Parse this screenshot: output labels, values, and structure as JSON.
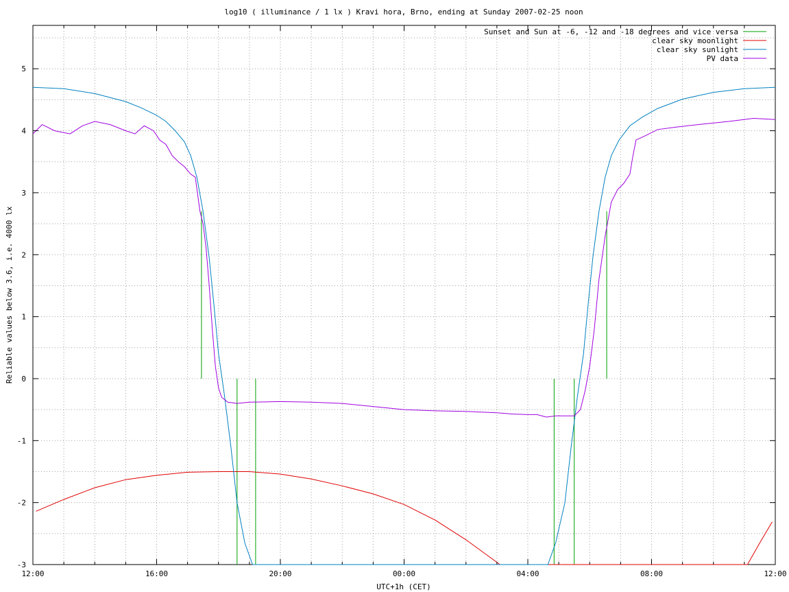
{
  "chart_data": {
    "type": "line",
    "title": "log10 ( illuminance / 1 lx ) Kravi hora, Brno, ending at Sunday 2007-02-25 noon",
    "xlabel": "UTC+1h (CET)",
    "ylabel": "Reliable values below 3.6, i.e. 4000 lx",
    "xlim": [
      0,
      24
    ],
    "ylim": [
      -3,
      5.7
    ],
    "x_tick_values": [
      0,
      4,
      8,
      12,
      16,
      20,
      24
    ],
    "x_tick_labels": [
      "12:00",
      "16:00",
      "20:00",
      "00:00",
      "04:00",
      "08:00",
      "12:00"
    ],
    "y_tick_values": [
      -3,
      -2,
      -1,
      0,
      1,
      2,
      3,
      4,
      5
    ],
    "y_tick_labels": [
      "-3",
      "-2",
      "-1",
      "0",
      "1",
      "2",
      "3",
      "4",
      "5"
    ],
    "grid": true,
    "legend_position": "top-right",
    "series": [
      {
        "name": "Sunset and Sun at -6, -12 and -18 degrees and vice versa",
        "color": "#00a000",
        "style": "impulses",
        "impulses": [
          [
            5.45,
            0,
            2.7
          ],
          [
            6.6,
            0,
            -3
          ],
          [
            7.2,
            0,
            -3
          ],
          [
            16.85,
            0,
            -3
          ],
          [
            17.5,
            0,
            -3
          ],
          [
            18.55,
            0,
            2.7
          ]
        ]
      },
      {
        "name": "clear sky moonlight",
        "color": "#e00000",
        "points": [
          [
            0.1,
            -2.14
          ],
          [
            1,
            -1.95
          ],
          [
            2,
            -1.76
          ],
          [
            3,
            -1.63
          ],
          [
            4,
            -1.56
          ],
          [
            5,
            -1.51
          ],
          [
            6,
            -1.5
          ],
          [
            7,
            -1.5
          ],
          [
            8,
            -1.54
          ],
          [
            9,
            -1.62
          ],
          [
            10,
            -1.73
          ],
          [
            11,
            -1.86
          ],
          [
            12,
            -2.03
          ],
          [
            13,
            -2.28
          ],
          [
            14,
            -2.6
          ],
          [
            15.1,
            -3.0
          ],
          [
            23.1,
            -3.0
          ],
          [
            23.5,
            -2.65
          ],
          [
            23.9,
            -2.31
          ]
        ]
      },
      {
        "name": "clear sky sunlight",
        "color": "#0080c0",
        "points": [
          [
            0,
            4.7
          ],
          [
            1,
            4.68
          ],
          [
            2,
            4.6
          ],
          [
            3,
            4.47
          ],
          [
            3.5,
            4.37
          ],
          [
            4,
            4.25
          ],
          [
            4.3,
            4.15
          ],
          [
            4.6,
            4.0
          ],
          [
            4.9,
            3.82
          ],
          [
            5.1,
            3.6
          ],
          [
            5.3,
            3.25
          ],
          [
            5.5,
            2.7
          ],
          [
            5.7,
            1.95
          ],
          [
            5.85,
            1.2
          ],
          [
            6.0,
            0.4
          ],
          [
            6.2,
            -0.3
          ],
          [
            6.4,
            -1.1
          ],
          [
            6.6,
            -2.0
          ],
          [
            6.85,
            -2.65
          ],
          [
            7.1,
            -3.0
          ],
          [
            16.65,
            -3.0
          ],
          [
            16.9,
            -2.65
          ],
          [
            17.2,
            -2.0
          ],
          [
            17.4,
            -1.1
          ],
          [
            17.6,
            -0.3
          ],
          [
            17.8,
            0.4
          ],
          [
            17.95,
            1.2
          ],
          [
            18.1,
            1.95
          ],
          [
            18.3,
            2.7
          ],
          [
            18.5,
            3.25
          ],
          [
            18.7,
            3.6
          ],
          [
            18.95,
            3.85
          ],
          [
            19.3,
            4.08
          ],
          [
            19.7,
            4.22
          ],
          [
            20.2,
            4.36
          ],
          [
            21,
            4.51
          ],
          [
            22,
            4.62
          ],
          [
            23,
            4.68
          ],
          [
            24,
            4.7
          ]
        ]
      },
      {
        "name": "PV data",
        "color": "#a000e0",
        "points": [
          [
            0,
            3.95
          ],
          [
            0.3,
            4.1
          ],
          [
            0.7,
            4.0
          ],
          [
            1.2,
            3.95
          ],
          [
            1.6,
            4.08
          ],
          [
            2.0,
            4.15
          ],
          [
            2.5,
            4.1
          ],
          [
            3.0,
            4.0
          ],
          [
            3.3,
            3.95
          ],
          [
            3.6,
            4.08
          ],
          [
            3.9,
            4.0
          ],
          [
            4.1,
            3.85
          ],
          [
            4.3,
            3.78
          ],
          [
            4.5,
            3.6
          ],
          [
            4.7,
            3.5
          ],
          [
            4.9,
            3.42
          ],
          [
            5.1,
            3.3
          ],
          [
            5.25,
            3.25
          ],
          [
            5.4,
            2.7
          ],
          [
            5.5,
            2.5
          ],
          [
            5.6,
            2.1
          ],
          [
            5.7,
            1.5
          ],
          [
            5.8,
            0.8
          ],
          [
            5.9,
            0.2
          ],
          [
            6.0,
            -0.15
          ],
          [
            6.1,
            -0.3
          ],
          [
            6.3,
            -0.38
          ],
          [
            6.6,
            -0.4
          ],
          [
            7.0,
            -0.38
          ],
          [
            8.0,
            -0.37
          ],
          [
            9.0,
            -0.38
          ],
          [
            10.0,
            -0.4
          ],
          [
            11.0,
            -0.45
          ],
          [
            12.0,
            -0.5
          ],
          [
            13.0,
            -0.52
          ],
          [
            14.0,
            -0.53
          ],
          [
            15.0,
            -0.55
          ],
          [
            15.5,
            -0.57
          ],
          [
            16.0,
            -0.58
          ],
          [
            16.3,
            -0.58
          ],
          [
            16.6,
            -0.62
          ],
          [
            16.9,
            -0.6
          ],
          [
            17.2,
            -0.6
          ],
          [
            17.5,
            -0.6
          ],
          [
            17.7,
            -0.5
          ],
          [
            17.85,
            -0.2
          ],
          [
            18.0,
            0.2
          ],
          [
            18.15,
            0.8
          ],
          [
            18.3,
            1.6
          ],
          [
            18.5,
            2.3
          ],
          [
            18.7,
            2.85
          ],
          [
            18.9,
            3.05
          ],
          [
            19.1,
            3.15
          ],
          [
            19.3,
            3.3
          ],
          [
            19.4,
            3.6
          ],
          [
            19.5,
            3.85
          ],
          [
            19.8,
            3.92
          ],
          [
            20.2,
            4.02
          ],
          [
            20.8,
            4.06
          ],
          [
            21.5,
            4.1
          ],
          [
            22.5,
            4.15
          ],
          [
            23.3,
            4.2
          ],
          [
            24,
            4.18
          ]
        ]
      }
    ]
  }
}
